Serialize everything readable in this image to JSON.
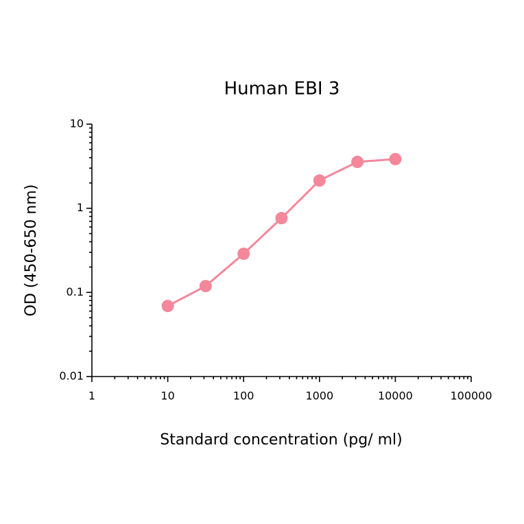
{
  "chart_data": {
    "type": "line",
    "title": "Human EBI 3",
    "x_label": "Standard concentration (pg/ ml)",
    "y_label": "OD (450-650 nm)",
    "x": [
      10,
      31.6,
      100,
      316,
      1000,
      3162,
      10000
    ],
    "series": [
      {
        "name": "Human EBI 3",
        "color": "#f4879a",
        "values": [
          0.069,
          0.119,
          0.288,
          0.764,
          2.14,
          3.56,
          3.84
        ]
      }
    ],
    "xlim": [
      1,
      100000
    ],
    "ylim": [
      0.01,
      10
    ],
    "xticks": [
      1,
      10,
      100,
      1000,
      10000,
      100000
    ],
    "yticks": [
      0.01,
      0.1,
      1,
      10
    ],
    "xscale": "log",
    "yscale": "log",
    "minor_ticks": true,
    "grid": false
  }
}
